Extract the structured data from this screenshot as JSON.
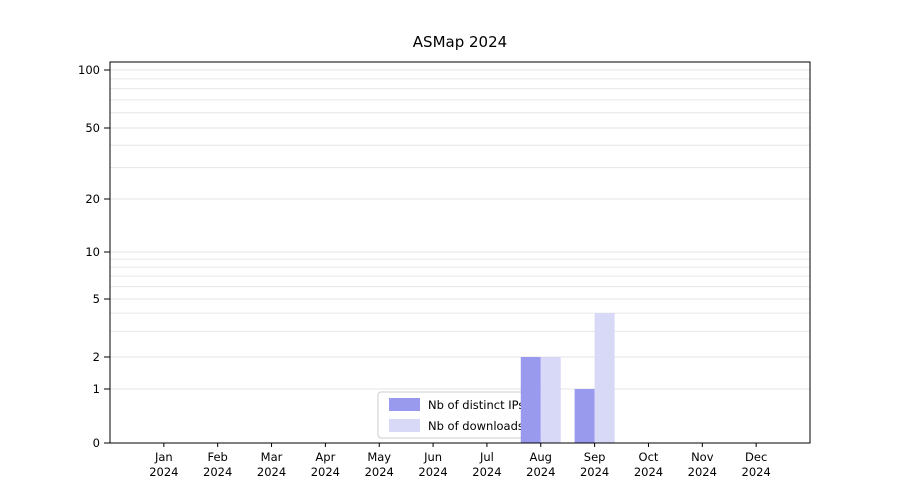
{
  "chart_data": {
    "type": "bar",
    "title": "ASMap 2024",
    "categories": [
      "Jan 2024",
      "Feb 2024",
      "Mar 2024",
      "Apr 2024",
      "May 2024",
      "Jun 2024",
      "Jul 2024",
      "Aug 2024",
      "Sep 2024",
      "Oct 2024",
      "Nov 2024",
      "Dec 2024"
    ],
    "series": [
      {
        "name": "Nb of distinct IPs",
        "color": "#9999ee",
        "values": [
          0,
          0,
          0,
          0,
          0,
          0,
          0,
          2,
          1,
          0,
          0,
          0
        ]
      },
      {
        "name": "Nb of downloads",
        "color": "#d8d8f7",
        "values": [
          0,
          0,
          0,
          0,
          0,
          0,
          0,
          2,
          4,
          0,
          0,
          0
        ]
      }
    ],
    "yticks": [
      0,
      1,
      2,
      5,
      10,
      20,
      50,
      100
    ],
    "ylim": [
      0,
      110
    ],
    "yscale": "symlog",
    "grid": true,
    "legend_position": "lower center",
    "xlabel": "",
    "ylabel": ""
  }
}
